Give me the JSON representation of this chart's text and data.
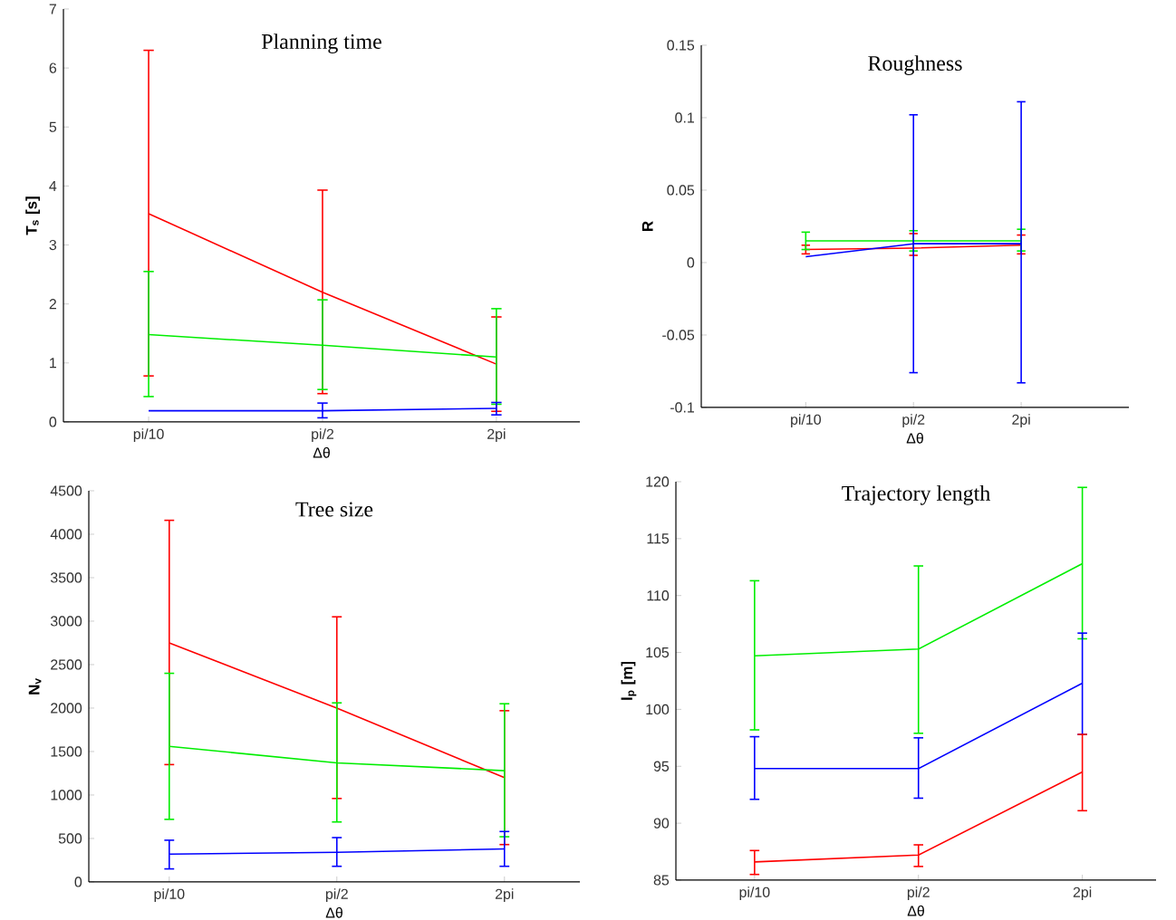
{
  "chart_data": [
    {
      "type": "line",
      "title": "Planning time",
      "xlabel": "Δθ",
      "ylabel": "T$_{s}$ [s]",
      "categories": [
        "pi/10",
        "pi/2",
        "2pi"
      ],
      "ylim": [
        0,
        7
      ],
      "yticks": [
        0,
        1,
        2,
        3,
        4,
        5,
        6,
        7
      ],
      "series": [
        {
          "color": "#ff0000",
          "values": [
            3.53,
            2.2,
            0.98
          ],
          "errors": [
            [
              0.78,
              6.3
            ],
            [
              0.48,
              3.93
            ],
            [
              0.18,
              1.78
            ]
          ]
        },
        {
          "color": "#00ee00",
          "values": [
            1.48,
            1.3,
            1.1
          ],
          "errors": [
            [
              0.43,
              2.55
            ],
            [
              0.55,
              2.07
            ],
            [
              0.3,
              1.92
            ]
          ]
        },
        {
          "color": "#0000ff",
          "values": [
            0.19,
            0.19,
            0.23
          ],
          "errors": [
            null,
            [
              0.07,
              0.32
            ],
            [
              0.12,
              0.33
            ]
          ]
        }
      ]
    },
    {
      "type": "line",
      "title": "Roughness",
      "xlabel": "Δθ",
      "ylabel": "R",
      "categories": [
        "pi/10",
        "pi/2",
        "2pi"
      ],
      "ylim": [
        -0.1,
        0.15
      ],
      "yticks": [
        -0.1,
        -0.05,
        0,
        0.05,
        0.1,
        0.15
      ],
      "series": [
        {
          "color": "#ff0000",
          "values": [
            0.009,
            0.01,
            0.012
          ],
          "errors": [
            [
              0.006,
              0.012
            ],
            [
              0.005,
              0.02
            ],
            [
              0.006,
              0.019
            ]
          ]
        },
        {
          "color": "#00ee00",
          "values": [
            0.015,
            0.015,
            0.015
          ],
          "errors": [
            [
              0.009,
              0.021
            ],
            [
              0.008,
              0.022
            ],
            [
              0.008,
              0.023
            ]
          ]
        },
        {
          "color": "#0000ff",
          "values": [
            0.004,
            0.013,
            0.013
          ],
          "errors": [
            null,
            [
              -0.076,
              0.102
            ],
            [
              -0.083,
              0.111
            ]
          ]
        }
      ]
    },
    {
      "type": "line",
      "title": "Tree size",
      "xlabel": "Δθ",
      "ylabel": "N$_{v}$",
      "categories": [
        "pi/10",
        "pi/2",
        "2pi"
      ],
      "ylim": [
        0,
        4500
      ],
      "yticks": [
        0,
        500,
        1000,
        1500,
        2000,
        2500,
        3000,
        3500,
        4000,
        4500
      ],
      "series": [
        {
          "color": "#ff0000",
          "values": [
            2750,
            2000,
            1200
          ],
          "errors": [
            [
              1350,
              4160
            ],
            [
              960,
              3050
            ],
            [
              430,
              1970
            ]
          ]
        },
        {
          "color": "#00ee00",
          "values": [
            1560,
            1370,
            1280
          ],
          "errors": [
            [
              720,
              2400
            ],
            [
              690,
              2060
            ],
            [
              520,
              2050
            ]
          ]
        },
        {
          "color": "#0000ff",
          "values": [
            320,
            340,
            380
          ],
          "errors": [
            [
              150,
              480
            ],
            [
              180,
              510
            ],
            [
              180,
              580
            ]
          ]
        }
      ]
    },
    {
      "type": "line",
      "title": "Trajectory length",
      "xlabel": "Δθ",
      "ylabel": "l$_{p}$ [m]",
      "categories": [
        "pi/10",
        "pi/2",
        "2pi"
      ],
      "ylim": [
        85,
        120
      ],
      "yticks": [
        85,
        90,
        95,
        100,
        105,
        110,
        115,
        120
      ],
      "series": [
        {
          "color": "#00ee00",
          "values": [
            104.7,
            105.3,
            112.8
          ],
          "errors": [
            [
              98.2,
              111.3
            ],
            [
              97.9,
              112.6
            ],
            [
              106.2,
              119.5
            ]
          ]
        },
        {
          "color": "#0000ff",
          "values": [
            94.8,
            94.8,
            102.3
          ],
          "errors": [
            [
              92.1,
              97.6
            ],
            [
              92.2,
              97.5
            ],
            [
              97.8,
              106.7
            ]
          ]
        },
        {
          "color": "#ff0000",
          "values": [
            86.6,
            87.2,
            94.5
          ],
          "errors": [
            [
              85.5,
              87.6
            ],
            [
              86.2,
              88.1
            ],
            [
              91.1,
              97.8
            ]
          ]
        }
      ]
    }
  ]
}
